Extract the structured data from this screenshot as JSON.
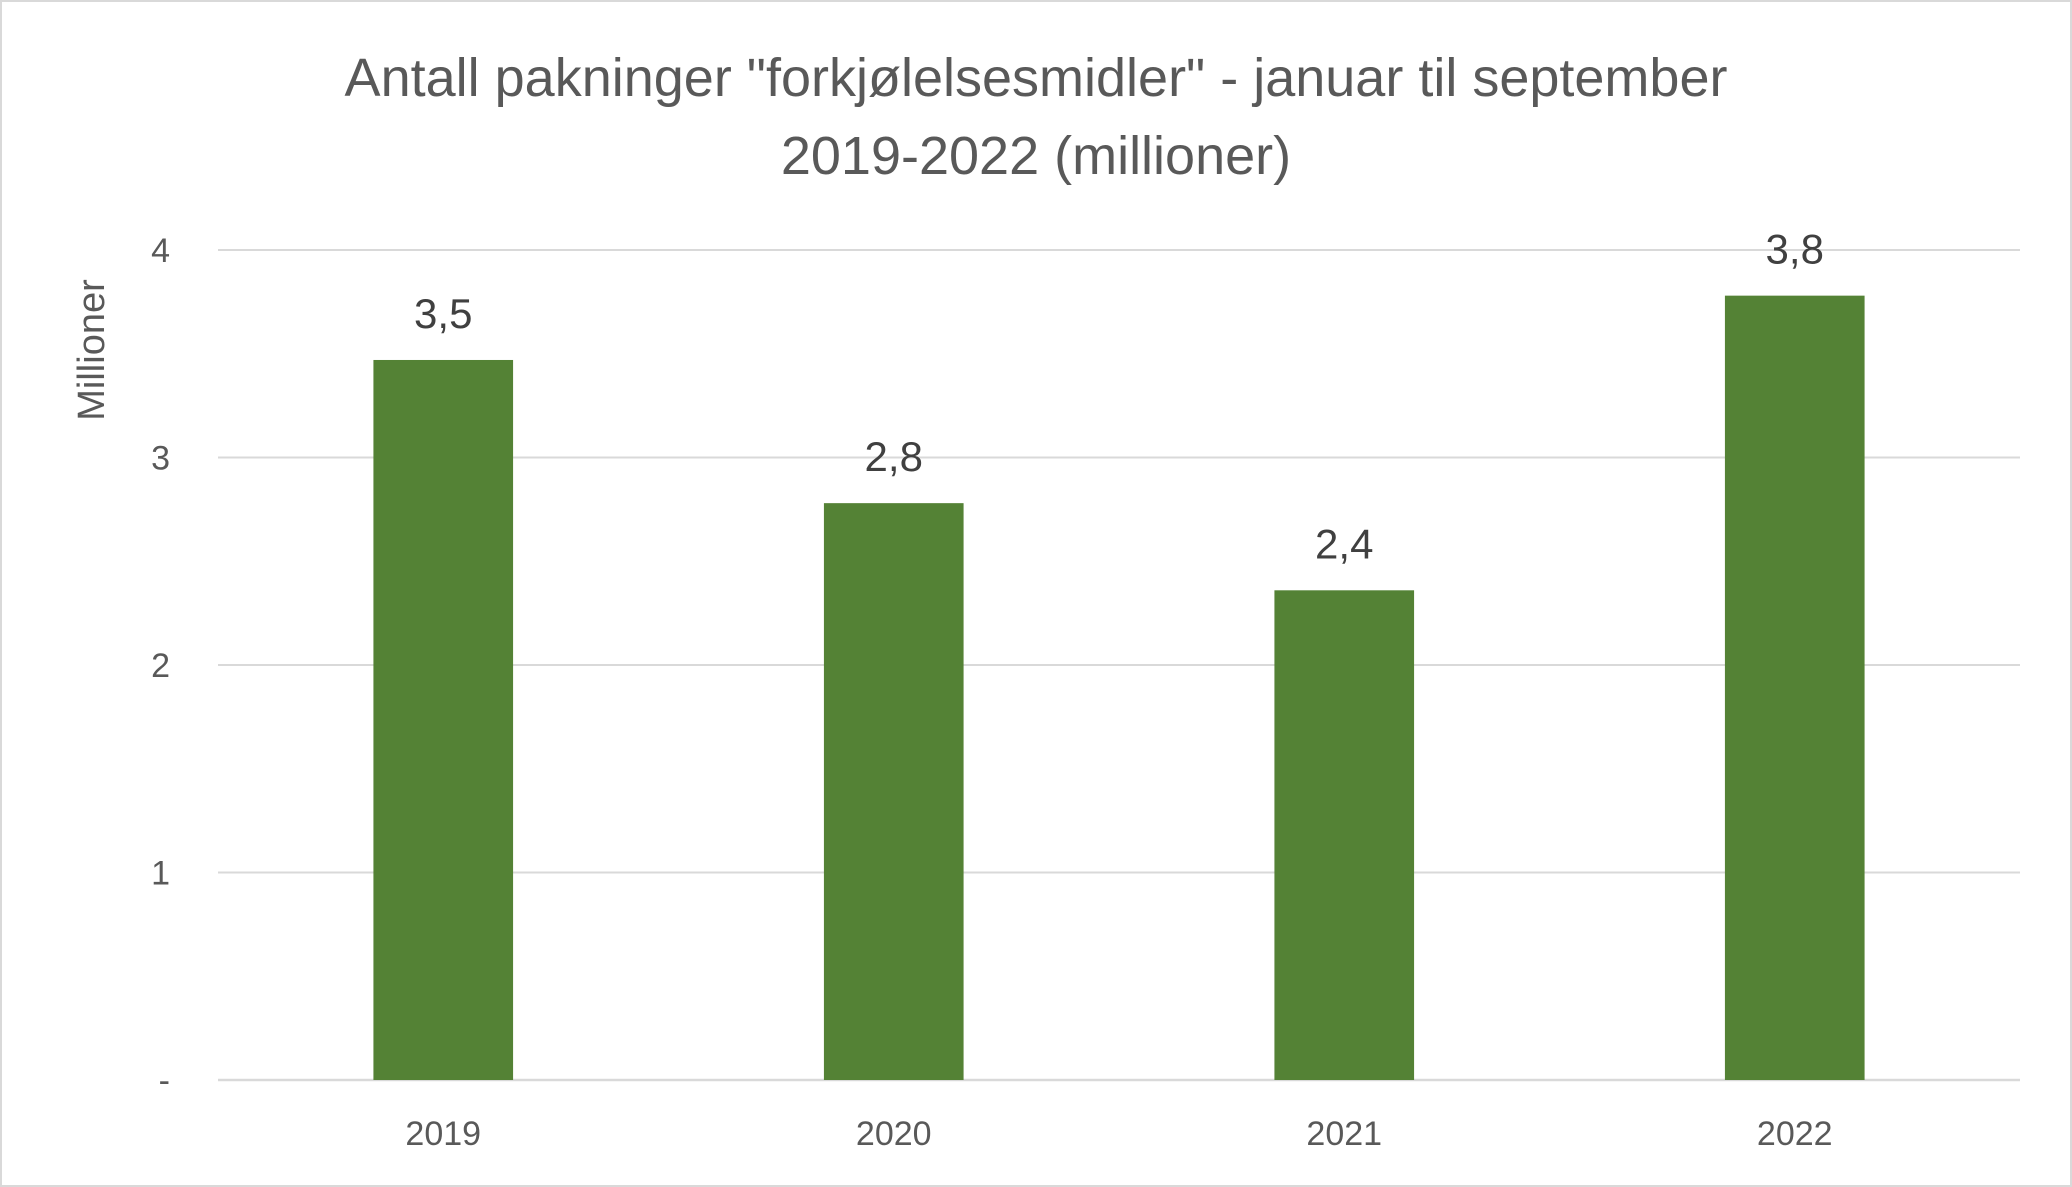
{
  "chart_data": {
    "type": "bar",
    "title_lines": [
      "Antall pakninger \"forkjølelsesmidler\" - januar til september",
      "2019-2022 (millioner)"
    ],
    "ylabel": "Millioner",
    "xlabel": "",
    "categories": [
      "2019",
      "2020",
      "2021",
      "2022"
    ],
    "values": [
      3.47,
      2.78,
      2.36,
      3.78
    ],
    "data_labels": [
      "3,5",
      "2,8",
      "2,4",
      "3,8"
    ],
    "ylim": [
      0,
      4
    ],
    "y_ticks": [
      0,
      1,
      2,
      3,
      4
    ],
    "y_tick_labels": [
      "-",
      "1",
      "2",
      "3",
      "4"
    ],
    "grid": true,
    "legend": "none",
    "bar_color": "#548235"
  }
}
